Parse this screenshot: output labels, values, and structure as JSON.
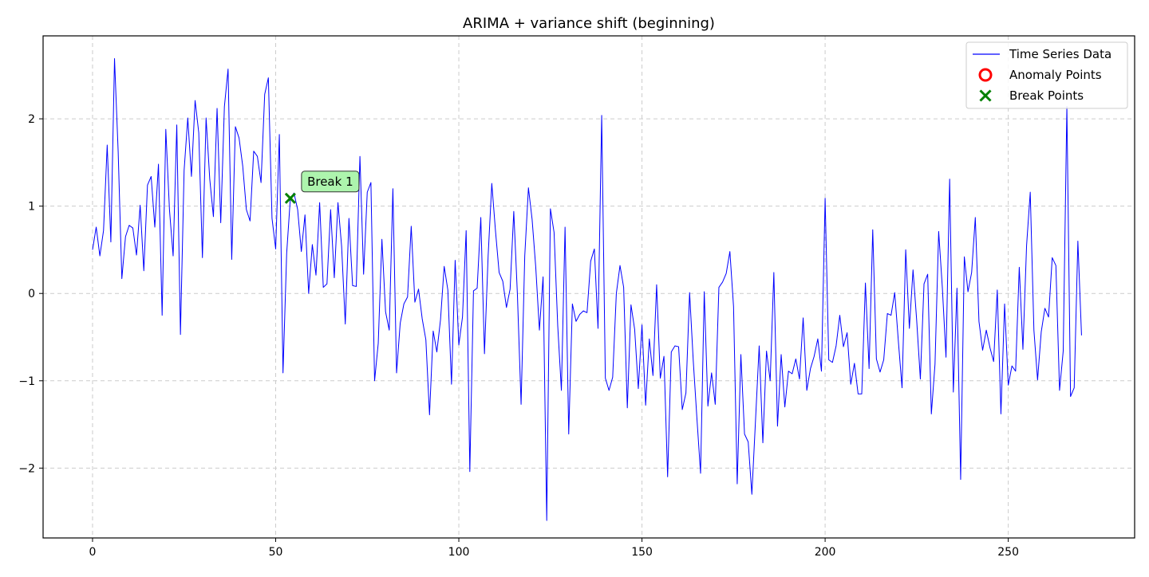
{
  "chart_data": {
    "type": "line",
    "title": "ARIMA + variance shift (beginning)",
    "xlabel": "",
    "ylabel": "",
    "xlim": [
      -13.5,
      284.5
    ],
    "ylim": [
      -2.8,
      2.95
    ],
    "xticks": [
      0,
      50,
      100,
      150,
      200,
      250
    ],
    "yticks": [
      -2,
      -1,
      0,
      1,
      2
    ],
    "grid": true,
    "legend_position": "upper right",
    "legend": [
      {
        "label": "Time Series Data",
        "kind": "line",
        "color": "#0000ff"
      },
      {
        "label": "Anomaly Points",
        "kind": "circle",
        "color": "#ff0000"
      },
      {
        "label": "Break Points",
        "kind": "x",
        "color": "#008000"
      }
    ],
    "series": [
      {
        "name": "Time Series Data",
        "color": "#0000ff",
        "x_start": 0,
        "values": [
          0.5,
          0.76,
          0.43,
          0.72,
          1.7,
          0.59,
          2.69,
          1.62,
          0.17,
          0.65,
          0.78,
          0.75,
          0.44,
          1.01,
          0.26,
          1.24,
          1.34,
          0.76,
          1.48,
          -0.25,
          1.88,
          0.96,
          0.43,
          1.93,
          -0.47,
          1.41,
          2.01,
          1.34,
          2.21,
          1.84,
          0.41,
          2.01,
          1.31,
          0.88,
          2.12,
          0.81,
          2.14,
          2.57,
          0.39,
          1.91,
          1.78,
          1.46,
          0.96,
          0.83,
          1.63,
          1.57,
          1.27,
          2.28,
          2.47,
          0.86,
          0.51,
          1.82,
          -0.91,
          0.46,
          1.09,
          1.15,
          0.96,
          0.48,
          0.9,
          0.0,
          0.56,
          0.21,
          1.04,
          0.07,
          0.11,
          0.96,
          0.18,
          1.04,
          0.54,
          -0.35,
          0.86,
          0.09,
          0.08,
          1.57,
          0.22,
          1.16,
          1.27,
          -1.0,
          -0.57,
          0.62,
          -0.21,
          -0.42,
          1.2,
          -0.91,
          -0.34,
          -0.12,
          -0.04,
          0.77,
          -0.1,
          0.05,
          -0.29,
          -0.53,
          -1.39,
          -0.43,
          -0.67,
          -0.3,
          0.31,
          0.04,
          -1.04,
          0.38,
          -0.59,
          -0.27,
          0.72,
          -2.04,
          0.03,
          0.06,
          0.87,
          -0.69,
          0.43,
          1.26,
          0.72,
          0.24,
          0.14,
          -0.16,
          0.05,
          0.94,
          -0.02,
          -1.27,
          0.43,
          1.21,
          0.85,
          0.3,
          -0.42,
          0.19,
          -2.6,
          0.97,
          0.7,
          -0.37,
          -1.11,
          0.76,
          -1.61,
          -0.12,
          -0.32,
          -0.24,
          -0.2,
          -0.22,
          0.37,
          0.51,
          -0.4,
          2.04,
          -0.97,
          -1.11,
          -0.96,
          0.0,
          0.32,
          0.07,
          -1.31,
          -0.13,
          -0.41,
          -1.09,
          -0.36,
          -1.28,
          -0.52,
          -0.94,
          0.1,
          -0.97,
          -0.72,
          -2.1,
          -0.67,
          -0.6,
          -0.61,
          -1.33,
          -1.14,
          0.01,
          -0.77,
          -1.43,
          -2.06,
          0.02,
          -1.29,
          -0.91,
          -1.27,
          0.07,
          0.13,
          0.23,
          0.48,
          -0.15,
          -2.18,
          -0.7,
          -1.61,
          -1.7,
          -2.3,
          -1.45,
          -0.6,
          -1.71,
          -0.66,
          -1.0,
          0.24,
          -1.52,
          -0.7,
          -1.3,
          -0.89,
          -0.92,
          -0.75,
          -0.98,
          -0.28,
          -1.11,
          -0.86,
          -0.72,
          -0.52,
          -0.89,
          1.09,
          -0.76,
          -0.79,
          -0.6,
          -0.25,
          -0.61,
          -0.45,
          -1.04,
          -0.8,
          -1.15,
          -1.15,
          0.12,
          -0.86,
          0.73,
          -0.75,
          -0.9,
          -0.76,
          -0.23,
          -0.25,
          0.01,
          -0.55,
          -1.08,
          0.5,
          -0.4,
          0.27,
          -0.31,
          -0.98,
          0.11,
          0.22,
          -1.38,
          -0.81,
          0.71,
          0.07,
          -0.73,
          1.31,
          -1.13,
          0.06,
          -2.13,
          0.42,
          0.02,
          0.24,
          0.87,
          -0.32,
          -0.65,
          -0.42,
          -0.62,
          -0.78,
          0.04,
          -1.38,
          -0.12,
          -1.05,
          -0.83,
          -0.89,
          0.3,
          -0.64,
          0.55,
          1.16,
          -0.42,
          -0.99,
          -0.44,
          -0.17,
          -0.27,
          0.41,
          0.32,
          -1.11,
          -0.66,
          2.14,
          -1.18,
          -1.08,
          0.6,
          -0.48
        ]
      }
    ],
    "break_points": [
      {
        "x": 54,
        "y": 1.09,
        "label": "Break 1"
      }
    ],
    "anomaly_points": []
  }
}
